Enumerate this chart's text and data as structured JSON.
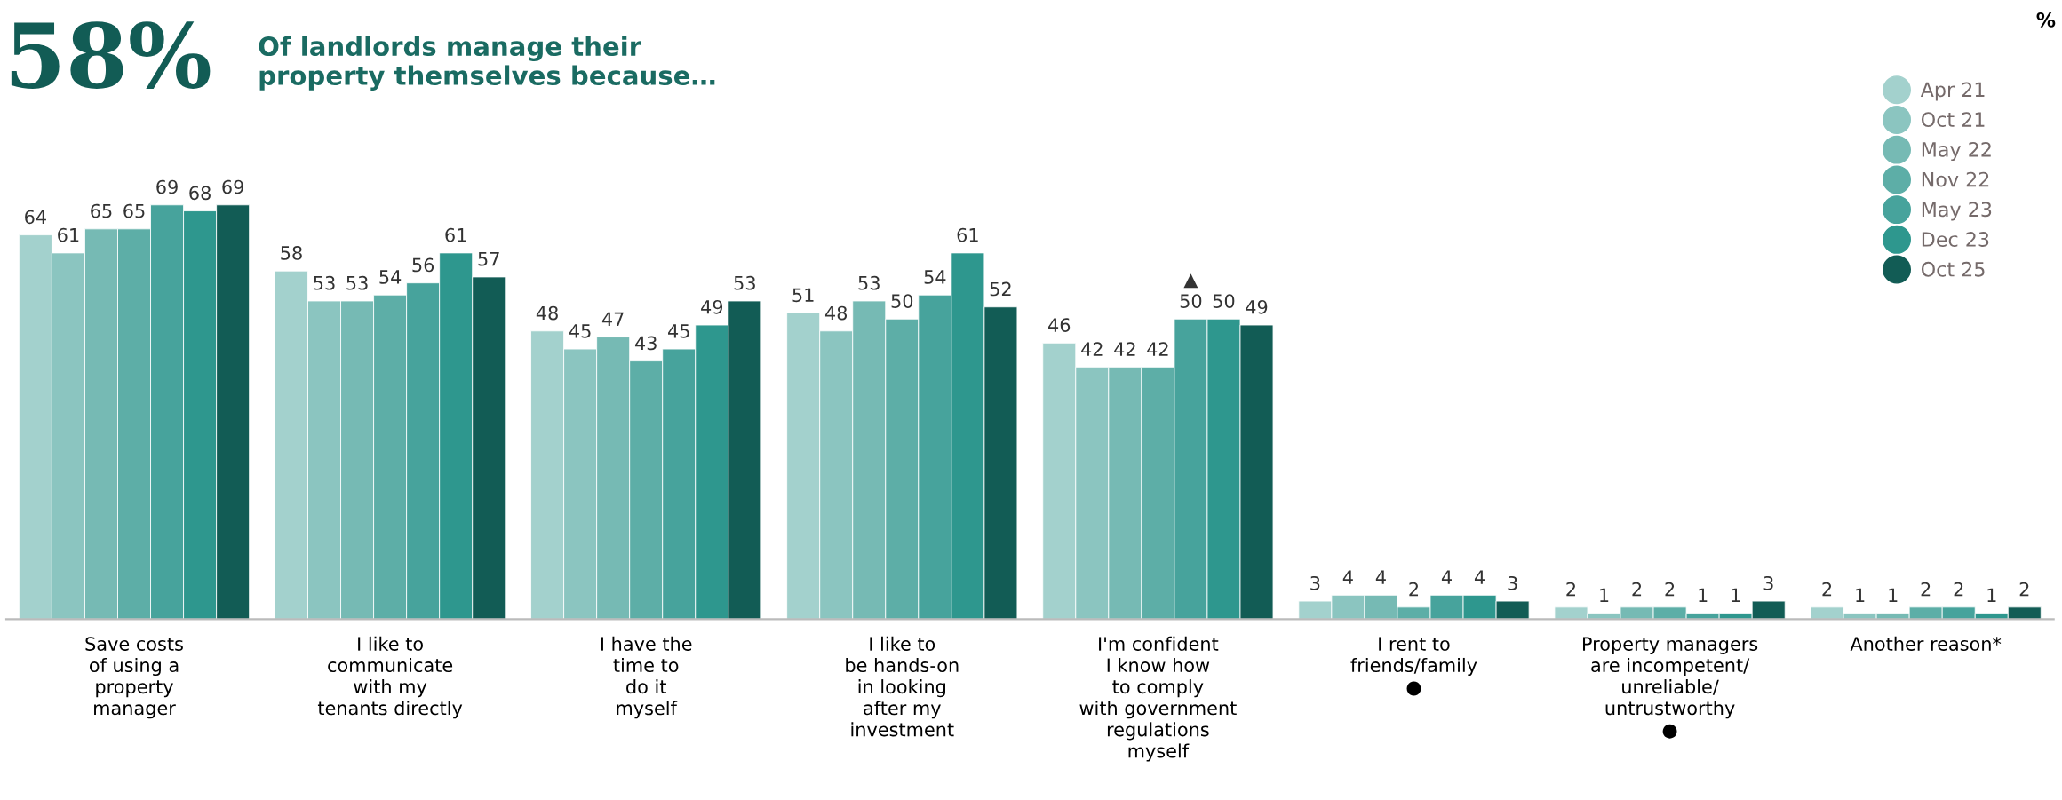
{
  "chart_data": {
    "type": "bar",
    "title": "58%",
    "subtitle": "Of landlords manage their\nproperty themselves because…",
    "categories": [
      "Save costs\nof using a\nproperty\nmanager",
      "I like to\ncommunicate\nwith my\ntenants directly",
      "I have the\ntime to\ndo it\nmyself",
      "I like to\nbe hands-on\nin looking\nafter my\ninvestment",
      "I'm confident\nI know how\nto comply\nwith government\nregulations\nmyself",
      "I rent to\nfriends/family\n●",
      "Property managers\nare incompetent/\nunreliable/\nuntrustworthy\n●",
      "Another reason*"
    ],
    "series": [
      {
        "name": "Apr 21",
        "color": "#a3d1cd",
        "values": [
          64,
          58,
          48,
          51,
          46,
          3,
          2,
          2
        ],
        "value_labels": [
          "64",
          "58",
          "48",
          "51",
          "46",
          "3",
          "2",
          "2"
        ]
      },
      {
        "name": "Oct 21",
        "color": "#8bc5c0",
        "values": [
          61,
          53,
          45,
          48,
          42,
          4,
          1,
          1
        ],
        "value_labels": [
          "61",
          "53",
          "45",
          "48",
          "42",
          "4",
          "1",
          "1"
        ]
      },
      {
        "name": "May 22",
        "color": "#76bab4",
        "values": [
          65,
          53,
          47,
          53,
          42,
          4,
          2,
          1
        ],
        "value_labels": [
          "65",
          "53",
          "47",
          "53",
          "42",
          "4",
          "2",
          "1"
        ]
      },
      {
        "name": "Nov 22",
        "color": "#5daea7",
        "values": [
          65,
          54,
          43,
          50,
          42,
          2,
          2,
          2
        ],
        "value_labels": [
          "65",
          "54",
          "43",
          "50",
          "42",
          "2",
          "2",
          "2"
        ]
      },
      {
        "name": "May 23",
        "color": "#47a39c",
        "values": [
          69,
          56,
          45,
          54,
          50,
          4,
          1,
          2
        ],
        "value_labels": [
          "69",
          "56",
          "45",
          "54",
          "▲\n50",
          "4",
          "1",
          "2"
        ]
      },
      {
        "name": "Dec 23",
        "color": "#2e978e",
        "values": [
          68,
          61,
          49,
          61,
          50,
          4,
          1,
          1
        ],
        "value_labels": [
          "68",
          "61",
          "49",
          "61",
          "50",
          "4",
          "1",
          "1"
        ]
      },
      {
        "name": "Oct 25",
        "color": "#125c55",
        "values": [
          69,
          57,
          53,
          52,
          49,
          3,
          3,
          2
        ],
        "value_labels": [
          "69",
          "57",
          "53",
          "52",
          "49",
          "3",
          "3",
          "2"
        ]
      }
    ],
    "legend": "top right",
    "annotations": [
      "%"
    ]
  }
}
